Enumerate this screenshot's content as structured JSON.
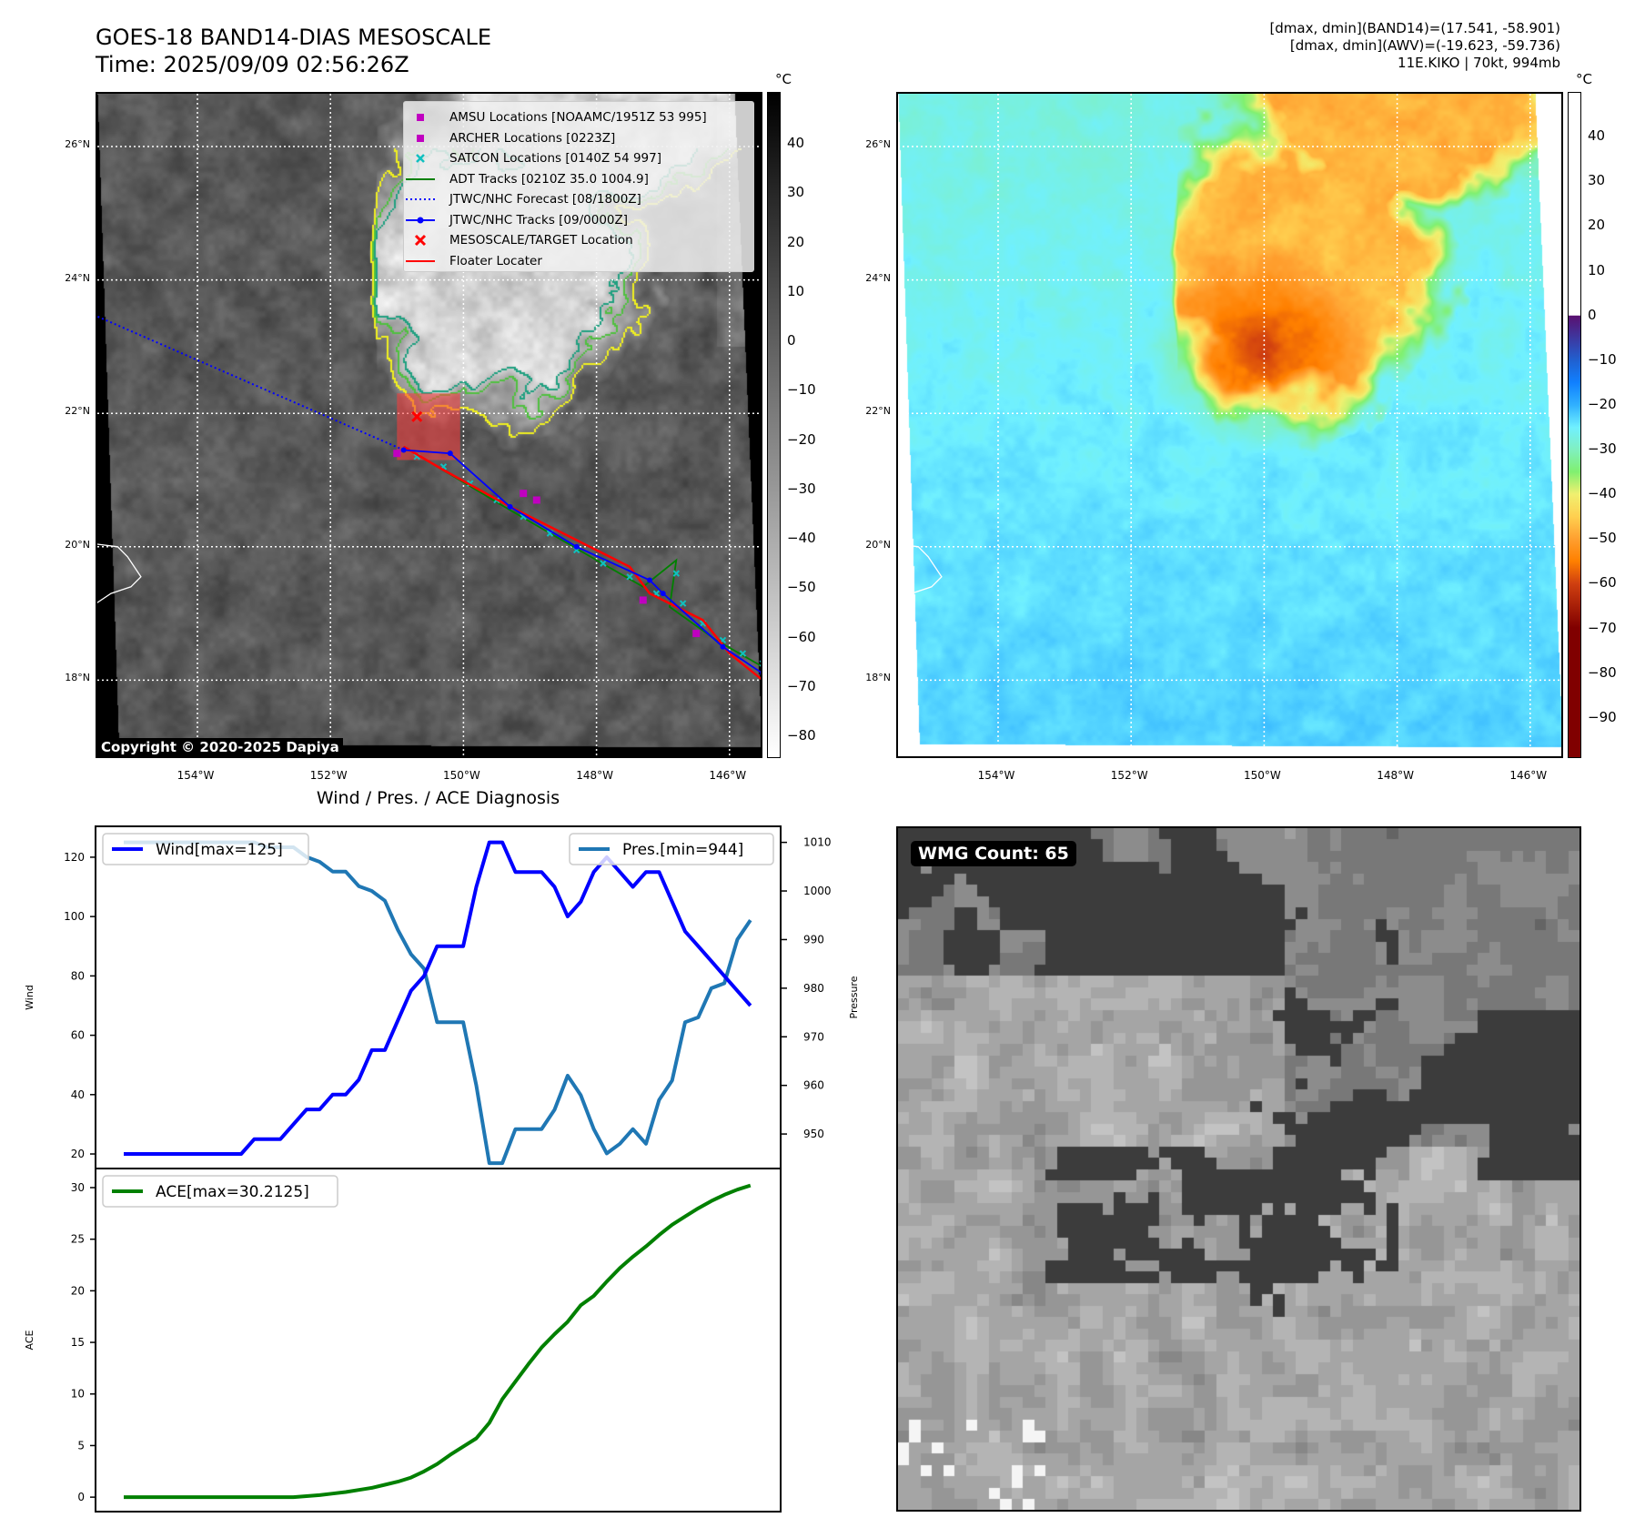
{
  "header": {
    "title_line1": "GOES-18 BAND14-DIAS MESOSCALE",
    "title_line2": "Time: 2025/09/09 02:56:26Z",
    "info_line1": "[dmax, dmin](BAND14)=(17.541, -58.901)",
    "info_line2": "[dmax, dmin](AWV)=(-19.623, -59.736)",
    "info_line3": "11E.KIKO | 70kt, 994mb"
  },
  "maps": {
    "lat_ticks": [
      "26°N",
      "24°N",
      "22°N",
      "20°N",
      "18°N"
    ],
    "lat_values": [
      26,
      24,
      22,
      20,
      18
    ],
    "lon_ticks": [
      "154°W",
      "152°W",
      "150°W",
      "148°W",
      "146°W"
    ],
    "lon_values": [
      -154,
      -152,
      -150,
      -148,
      -146
    ],
    "copyright": "Copyright © 2020-2025 Dapiya",
    "unit": "°C",
    "left_colorbar": {
      "ticks": [
        "40",
        "30",
        "20",
        "10",
        "0",
        "−10",
        "−20",
        "−30",
        "−40",
        "−50",
        "−60",
        "−70",
        "−80"
      ],
      "values": [
        40,
        30,
        20,
        10,
        0,
        -10,
        -20,
        -30,
        -40,
        -50,
        -60,
        -70,
        -80
      ],
      "range": [
        50.5,
        -84.4
      ]
    },
    "right_colorbar": {
      "ticks": [
        "40",
        "30",
        "20",
        "10",
        "0",
        "−10",
        "−20",
        "−30",
        "−40",
        "−50",
        "−60",
        "−70",
        "−80",
        "−90"
      ],
      "values": [
        40,
        30,
        20,
        10,
        0,
        -10,
        -20,
        -30,
        -40,
        -50,
        -60,
        -70,
        -80,
        -90
      ],
      "range": [
        50,
        -99
      ]
    },
    "legend": [
      {
        "label": "AMSU Locations [NOAAMC/1951Z 53 995]",
        "symbol": "square",
        "color": "#c000c0"
      },
      {
        "label": "ARCHER Locations [0223Z]",
        "symbol": "square",
        "color": "#c000c0"
      },
      {
        "label": "SATCON Locations [0140Z 54 997]",
        "symbol": "x",
        "color": "#10c0c0"
      },
      {
        "label": "ADT Tracks [0210Z 35.0 1004.9]",
        "symbol": "line",
        "color": "#008000"
      },
      {
        "label": "JTWC/NHC Forecast [08/1800Z]",
        "symbol": "dotted",
        "color": "#0000ff"
      },
      {
        "label": "JTWC/NHC Tracks [09/0000Z]",
        "symbol": "line-dot",
        "color": "#0000ff"
      },
      {
        "label": "MESOSCALE/TARGET Location",
        "symbol": "bigx",
        "color": "#ff0000"
      },
      {
        "label": "Floater Locater",
        "symbol": "line",
        "color": "#ff0000"
      }
    ],
    "overlays": {
      "forecast": [
        [
          -155.5,
          23.45
        ],
        [
          -150.9,
          21.45
        ]
      ],
      "jtwc": [
        [
          -150.9,
          21.45
        ],
        [
          -150.2,
          21.4
        ],
        [
          -149.3,
          20.6
        ],
        [
          -148.3,
          20.0
        ],
        [
          -147.2,
          19.5
        ],
        [
          -147.0,
          19.3
        ],
        [
          -146.1,
          18.5
        ],
        [
          -145.5,
          18.1
        ]
      ],
      "floater": [
        [
          -150.9,
          21.5
        ],
        [
          -150.3,
          21.15
        ],
        [
          -149.3,
          20.6
        ],
        [
          -148.0,
          19.95
        ],
        [
          -147.5,
          19.7
        ],
        [
          -147.2,
          19.3
        ],
        [
          -146.4,
          18.9
        ],
        [
          -146.0,
          18.4
        ],
        [
          -145.5,
          18.0
        ]
      ],
      "adt": [
        [
          -150.9,
          21.5
        ],
        [
          -149.3,
          20.55
        ],
        [
          -148.0,
          19.8
        ],
        [
          -147.3,
          19.4
        ],
        [
          -146.8,
          19.8
        ],
        [
          -146.9,
          19.1
        ],
        [
          -146.2,
          18.6
        ],
        [
          -145.5,
          18.2
        ]
      ],
      "satcon": [
        [
          -150.7,
          21.35
        ],
        [
          -150.3,
          21.2
        ],
        [
          -149.9,
          20.95
        ],
        [
          -149.5,
          20.7
        ],
        [
          -149.1,
          20.45
        ],
        [
          -148.7,
          20.2
        ],
        [
          -148.3,
          19.95
        ],
        [
          -147.9,
          19.75
        ],
        [
          -147.5,
          19.55
        ],
        [
          -147.1,
          19.3
        ],
        [
          -146.8,
          19.6
        ],
        [
          -146.7,
          19.15
        ],
        [
          -146.4,
          18.85
        ],
        [
          -146.1,
          18.6
        ],
        [
          -145.8,
          18.4
        ],
        [
          -145.5,
          18.25
        ]
      ],
      "amsu": [
        [
          -149.1,
          20.8
        ],
        [
          -148.9,
          20.7
        ],
        [
          -147.3,
          19.2
        ],
        [
          -146.5,
          18.7
        ]
      ],
      "archer": [
        [
          -151.0,
          21.4
        ]
      ],
      "target": [
        [
          -150.7,
          21.95
        ]
      ],
      "floater_box": {
        "lon": [
          -151.0,
          -150.05
        ],
        "lat": [
          21.3,
          22.3
        ]
      }
    }
  },
  "wmg": {
    "label": "WMG Count: 65"
  },
  "chart_data": {
    "type": "line",
    "title": "Wind / Pres. / ACE Diagnosis",
    "panels": [
      {
        "ylabel": "Wind",
        "ylim": [
          15.1,
          130.4
        ],
        "yticks": [
          20,
          40,
          60,
          80,
          100,
          120
        ],
        "y2label": "Pressure",
        "y2lim": [
          942.9,
          1013.3
        ],
        "y2ticks": [
          950,
          960,
          970,
          980,
          990,
          1000,
          1010
        ],
        "legend_left": "Wind[max=125]",
        "legend_right": "Pres.[min=944]",
        "series": [
          {
            "name": "Wind",
            "color": "#0000ff",
            "axis": "left",
            "values": [
              20,
              20,
              20,
              20,
              20,
              20,
              20,
              20,
              20,
              20,
              25,
              25,
              25,
              30,
              35,
              35,
              40,
              40,
              45,
              55,
              55,
              65,
              75,
              80,
              90,
              90,
              90,
              110,
              125,
              125,
              115,
              115,
              115,
              110,
              100,
              105,
              115,
              120,
              115,
              110,
              115,
              115,
              105,
              95,
              90,
              85,
              80,
              75,
              70
            ]
          },
          {
            "name": "Pres.",
            "color": "#1f77b4",
            "axis": "right",
            "values": [
              1010,
              1010,
              1010,
              1010,
              1010,
              1010,
              1010,
              1010,
              1010,
              1010,
              1010,
              1009,
              1009,
              1009,
              1007,
              1006,
              1004,
              1004,
              1001,
              1000,
              998,
              992,
              987,
              984,
              973,
              973,
              973,
              960,
              944,
              944,
              951,
              951,
              951,
              955,
              962,
              958,
              951,
              946,
              948,
              951,
              948,
              957,
              961,
              973,
              974,
              980,
              981,
              990,
              994
            ]
          }
        ]
      },
      {
        "ylabel": "ACE",
        "ylim": [
          -1.4,
          31.85
        ],
        "yticks": [
          0,
          5,
          10,
          15,
          20,
          25,
          30
        ],
        "legend_left": "ACE[max=30.2125]",
        "series": [
          {
            "name": "ACE",
            "color": "#008000",
            "axis": "left",
            "values": [
              0,
              0,
              0,
              0,
              0,
              0,
              0,
              0,
              0,
              0,
              0,
              0,
              0,
              0,
              0.1,
              0.2,
              0.35,
              0.5,
              0.7,
              0.9,
              1.2,
              1.5,
              1.9,
              2.5,
              3.2,
              4.1,
              4.9,
              5.7,
              7.2,
              9.5,
              11.2,
              12.9,
              14.5,
              15.8,
              17.0,
              18.6,
              19.5,
              20.9,
              22.2,
              23.3,
              24.3,
              25.4,
              26.4,
              27.2,
              28.0,
              28.7,
              29.3,
              29.8,
              30.2125
            ]
          }
        ]
      }
    ]
  }
}
